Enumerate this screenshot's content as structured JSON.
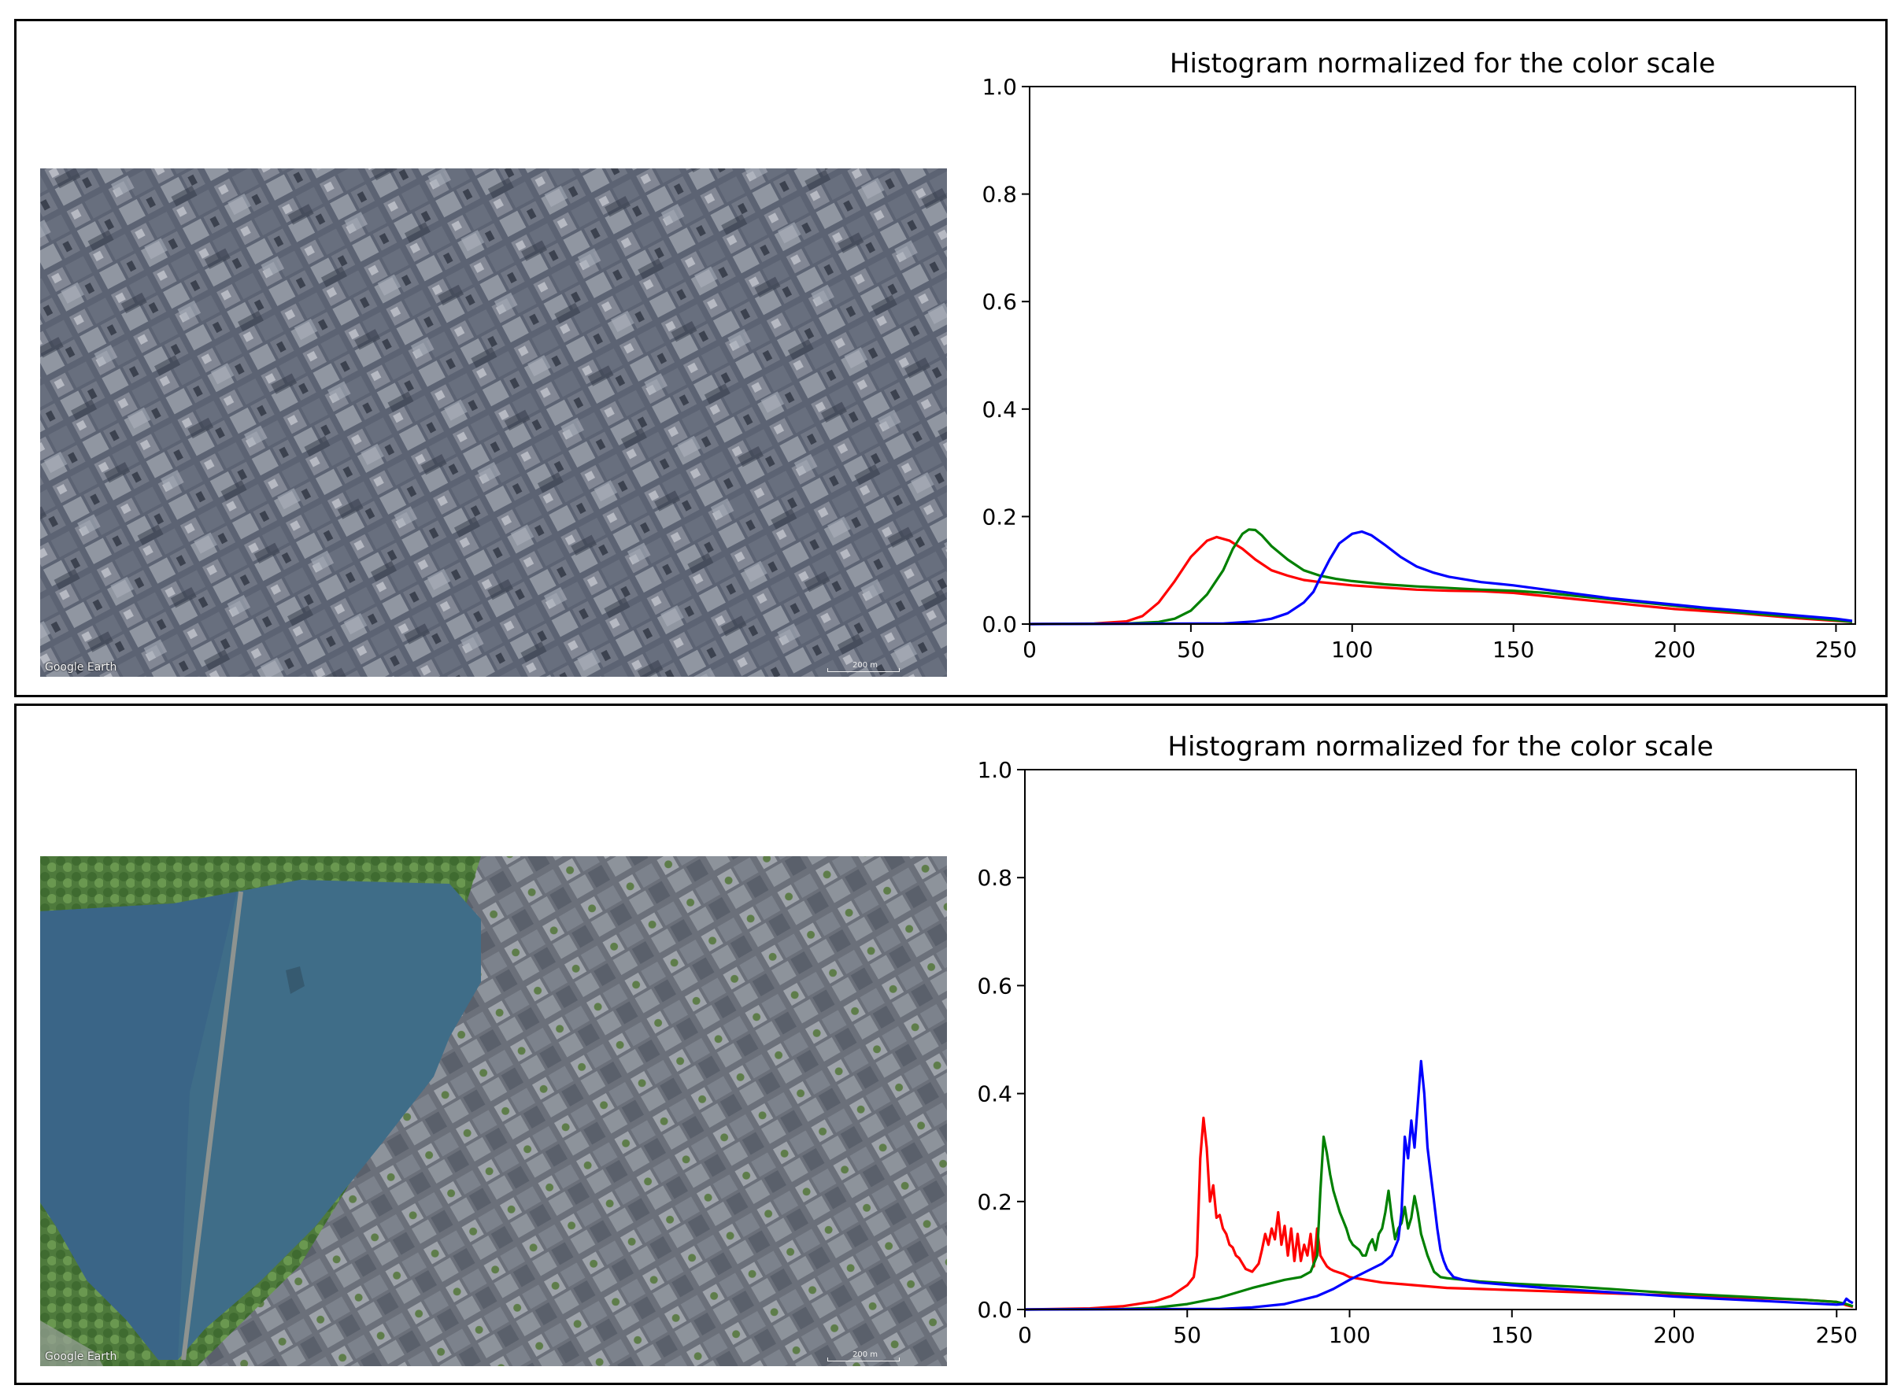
{
  "images": [
    {
      "brand": "Google Earth",
      "scale": "200 m"
    },
    {
      "brand": "Google Earth",
      "scale": "200 m"
    }
  ],
  "chart_data": [
    {
      "type": "line",
      "title": "Histogram normalized for the color scale",
      "xlabel": "",
      "ylabel": "",
      "xlim": [
        0,
        256
      ],
      "ylim": [
        0,
        1.0
      ],
      "xticks": [
        "0",
        "50",
        "100",
        "150",
        "200",
        "250"
      ],
      "yticks": [
        "0.0",
        "0.2",
        "0.4",
        "0.6",
        "0.8",
        "1.0"
      ],
      "grid": false,
      "series": [
        {
          "color": "#ff0000",
          "x": [
            0,
            20,
            30,
            35,
            40,
            45,
            50,
            55,
            58,
            62,
            66,
            70,
            75,
            80,
            85,
            90,
            100,
            110,
            120,
            130,
            140,
            150,
            160,
            170,
            180,
            190,
            200,
            210,
            220,
            230,
            240,
            250,
            255
          ],
          "values": [
            0,
            0.001,
            0.005,
            0.015,
            0.04,
            0.08,
            0.125,
            0.155,
            0.162,
            0.155,
            0.14,
            0.12,
            0.1,
            0.09,
            0.082,
            0.078,
            0.072,
            0.068,
            0.064,
            0.062,
            0.061,
            0.058,
            0.052,
            0.046,
            0.04,
            0.034,
            0.028,
            0.024,
            0.02,
            0.015,
            0.01,
            0.006,
            0.004
          ]
        },
        {
          "color": "#008000",
          "x": [
            0,
            30,
            40,
            45,
            50,
            55,
            60,
            63,
            66,
            68,
            70,
            72,
            75,
            80,
            85,
            90,
            95,
            100,
            110,
            120,
            130,
            140,
            150,
            160,
            170,
            180,
            190,
            200,
            210,
            220,
            230,
            240,
            250,
            255
          ],
          "values": [
            0,
            0.001,
            0.004,
            0.01,
            0.025,
            0.055,
            0.1,
            0.14,
            0.168,
            0.176,
            0.175,
            0.165,
            0.145,
            0.12,
            0.1,
            0.09,
            0.084,
            0.08,
            0.074,
            0.07,
            0.067,
            0.064,
            0.062,
            0.058,
            0.052,
            0.046,
            0.04,
            0.034,
            0.028,
            0.022,
            0.017,
            0.012,
            0.007,
            0.004
          ]
        },
        {
          "color": "#0000ff",
          "x": [
            0,
            60,
            70,
            75,
            80,
            85,
            88,
            90,
            93,
            96,
            100,
            103,
            106,
            110,
            115,
            120,
            125,
            130,
            140,
            150,
            160,
            170,
            180,
            190,
            200,
            210,
            220,
            230,
            240,
            250,
            255
          ],
          "values": [
            0,
            0.001,
            0.005,
            0.01,
            0.02,
            0.04,
            0.06,
            0.085,
            0.12,
            0.15,
            0.168,
            0.172,
            0.165,
            0.148,
            0.125,
            0.107,
            0.096,
            0.088,
            0.078,
            0.072,
            0.064,
            0.056,
            0.048,
            0.042,
            0.036,
            0.03,
            0.025,
            0.02,
            0.015,
            0.01,
            0.006
          ]
        }
      ]
    },
    {
      "type": "line",
      "title": "Histogram normalized for the color scale",
      "xlabel": "",
      "ylabel": "",
      "xlim": [
        0,
        256
      ],
      "ylim": [
        0,
        1.0
      ],
      "xticks": [
        "0",
        "50",
        "100",
        "150",
        "200",
        "250"
      ],
      "yticks": [
        "0.0",
        "0.2",
        "0.4",
        "0.6",
        "0.8",
        "1.0"
      ],
      "grid": false,
      "series": [
        {
          "color": "#ff0000",
          "x": [
            0,
            20,
            30,
            40,
            45,
            50,
            52,
            53,
            54,
            55,
            56,
            57,
            58,
            59,
            60,
            61,
            62,
            63,
            64,
            65,
            66,
            67,
            68,
            70,
            72,
            73,
            74,
            75,
            76,
            77,
            78,
            79,
            80,
            81,
            82,
            83,
            84,
            85,
            86,
            87,
            88,
            89,
            90,
            91,
            92,
            93,
            94,
            95,
            96,
            97,
            98,
            100,
            105,
            110,
            120,
            130,
            140,
            150,
            160,
            170,
            180,
            190,
            200,
            210,
            220,
            230,
            240,
            250,
            253,
            255
          ],
          "values": [
            0,
            0.002,
            0.006,
            0.015,
            0.025,
            0.045,
            0.06,
            0.1,
            0.28,
            0.355,
            0.3,
            0.2,
            0.23,
            0.17,
            0.175,
            0.15,
            0.14,
            0.12,
            0.115,
            0.1,
            0.095,
            0.085,
            0.075,
            0.07,
            0.085,
            0.11,
            0.14,
            0.12,
            0.15,
            0.13,
            0.18,
            0.12,
            0.155,
            0.1,
            0.15,
            0.09,
            0.14,
            0.09,
            0.12,
            0.1,
            0.14,
            0.08,
            0.15,
            0.1,
            0.09,
            0.08,
            0.075,
            0.072,
            0.07,
            0.068,
            0.066,
            0.06,
            0.055,
            0.05,
            0.045,
            0.04,
            0.038,
            0.036,
            0.034,
            0.032,
            0.03,
            0.028,
            0.026,
            0.024,
            0.022,
            0.02,
            0.018,
            0.014,
            0.008,
            0.005
          ]
        },
        {
          "color": "#008000",
          "x": [
            0,
            30,
            40,
            50,
            60,
            70,
            80,
            85,
            88,
            90,
            91,
            92,
            93,
            94,
            95,
            96,
            97,
            98,
            99,
            100,
            101,
            102,
            103,
            104,
            105,
            106,
            107,
            108,
            109,
            110,
            111,
            112,
            113,
            114,
            115,
            116,
            117,
            118,
            119,
            120,
            121,
            122,
            123,
            124,
            125,
            126,
            127,
            128,
            130,
            135,
            140,
            150,
            160,
            170,
            180,
            190,
            200,
            210,
            220,
            230,
            240,
            250,
            253,
            255
          ],
          "values": [
            0,
            0.001,
            0.003,
            0.01,
            0.022,
            0.04,
            0.055,
            0.06,
            0.07,
            0.1,
            0.22,
            0.32,
            0.29,
            0.25,
            0.22,
            0.2,
            0.18,
            0.165,
            0.15,
            0.13,
            0.12,
            0.115,
            0.11,
            0.1,
            0.1,
            0.12,
            0.13,
            0.11,
            0.14,
            0.15,
            0.18,
            0.22,
            0.17,
            0.13,
            0.15,
            0.16,
            0.19,
            0.15,
            0.17,
            0.21,
            0.18,
            0.14,
            0.12,
            0.1,
            0.085,
            0.07,
            0.065,
            0.06,
            0.058,
            0.055,
            0.052,
            0.048,
            0.045,
            0.042,
            0.038,
            0.034,
            0.03,
            0.027,
            0.024,
            0.021,
            0.018,
            0.014,
            0.01,
            0.006
          ]
        },
        {
          "color": "#0000ff",
          "x": [
            0,
            60,
            70,
            80,
            90,
            95,
            100,
            105,
            110,
            113,
            115,
            116,
            117,
            118,
            119,
            120,
            121,
            122,
            123,
            124,
            125,
            126,
            127,
            128,
            129,
            130,
            132,
            135,
            140,
            150,
            160,
            170,
            180,
            190,
            200,
            210,
            220,
            230,
            240,
            250,
            252,
            253,
            254,
            255
          ],
          "values": [
            0,
            0.001,
            0.004,
            0.01,
            0.025,
            0.038,
            0.055,
            0.07,
            0.085,
            0.1,
            0.13,
            0.18,
            0.32,
            0.28,
            0.35,
            0.3,
            0.38,
            0.46,
            0.4,
            0.3,
            0.25,
            0.2,
            0.15,
            0.11,
            0.09,
            0.075,
            0.06,
            0.055,
            0.05,
            0.045,
            0.04,
            0.036,
            0.032,
            0.028,
            0.024,
            0.021,
            0.018,
            0.015,
            0.012,
            0.009,
            0.01,
            0.02,
            0.015,
            0.012
          ]
        }
      ]
    }
  ]
}
